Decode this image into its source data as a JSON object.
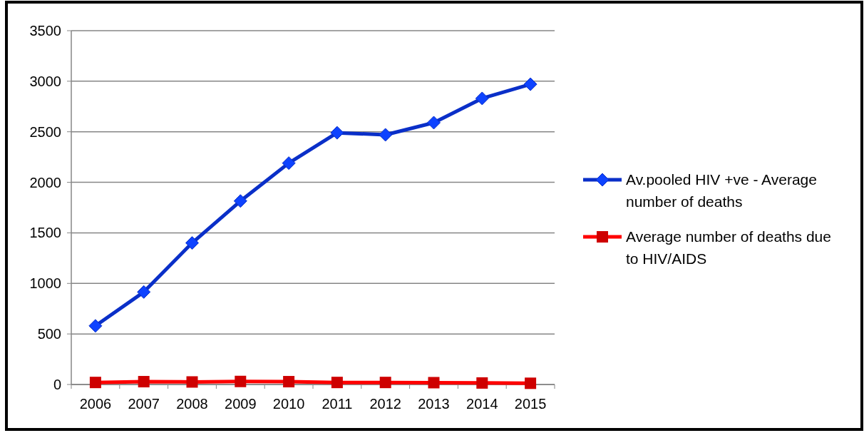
{
  "chart_data": {
    "type": "line",
    "categories": [
      "2006",
      "2007",
      "2008",
      "2009",
      "2010",
      "2011",
      "2012",
      "2013",
      "2014",
      "2015"
    ],
    "series": [
      {
        "name": "Av.pooled HIV +ve - Average number of deaths",
        "color": "#0a2fc8",
        "marker": "diamond",
        "values": [
          580,
          915,
          1400,
          1815,
          2190,
          2490,
          2470,
          2590,
          2830,
          2970
        ]
      },
      {
        "name": "Average number of deaths due to HIV/AIDS",
        "color": "#ff0000",
        "marker": "square",
        "values": [
          20,
          28,
          25,
          30,
          28,
          20,
          20,
          18,
          15,
          12
        ]
      }
    ],
    "ylim": [
      0,
      3500
    ],
    "yticks": [
      0,
      500,
      1000,
      1500,
      2000,
      2500,
      3000,
      3500
    ],
    "grid": "y",
    "legend": "right"
  }
}
